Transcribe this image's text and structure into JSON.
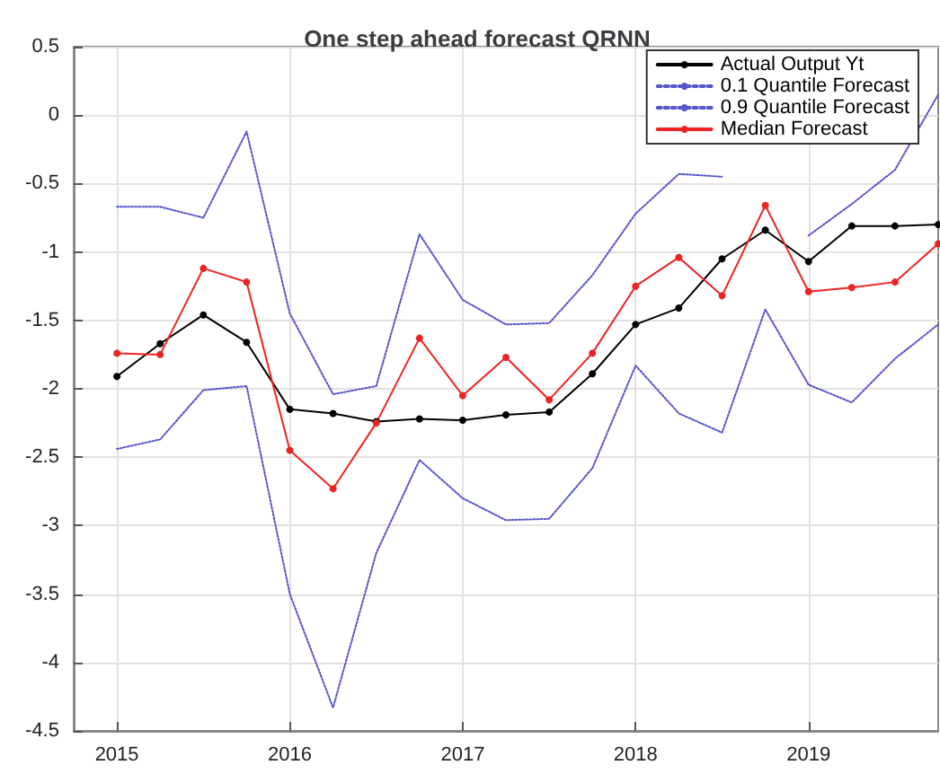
{
  "chart_data": {
    "type": "line",
    "title": "One step ahead forecast QRNN",
    "x": [
      2015,
      2015.25,
      2015.5,
      2015.75,
      2016,
      2016.25,
      2016.5,
      2016.75,
      2017,
      2017.25,
      2017.5,
      2017.75,
      2018,
      2018.25,
      2018.5,
      2018.75,
      2019,
      2019.25,
      2019.5,
      2019.75
    ],
    "series": [
      {
        "name": "Actual Output Yt",
        "color": "#000000",
        "marker": "circle",
        "line_style": "solid",
        "values": [
          -1.91,
          -1.67,
          -1.46,
          -1.66,
          -2.15,
          -2.18,
          -2.24,
          -2.22,
          -2.23,
          -2.19,
          -2.17,
          -1.89,
          -1.53,
          -1.41,
          -1.05,
          -0.84,
          -1.07,
          -0.81,
          -0.81,
          -0.8
        ]
      },
      {
        "name": "0.1 Quantile Forecast",
        "color": "#5555cc",
        "marker": "none",
        "line_style": "dotted",
        "values": [
          -2.44,
          -2.37,
          -2.01,
          -1.98,
          -3.5,
          -4.33,
          -3.2,
          -2.52,
          -2.8,
          -2.96,
          -2.95,
          -2.58,
          -1.83,
          -2.18,
          -2.32,
          -1.42,
          -1.97,
          -2.1,
          -1.78,
          -1.53
        ]
      },
      {
        "name": "0.9 Quantile Forecast",
        "color": "#5555cc",
        "marker": "none",
        "line_style": "dotted",
        "values": [
          -0.67,
          -0.67,
          -0.75,
          -0.12,
          -1.45,
          -2.04,
          -1.98,
          -0.87,
          -1.35,
          -1.53,
          -1.52,
          -1.17,
          -0.72,
          -0.43,
          -0.45,
          null,
          -0.88,
          -0.65,
          -0.4,
          0.15
        ]
      },
      {
        "name": "Median Forecast",
        "color": "#ee2222",
        "marker": "circle",
        "line_style": "solid",
        "values": [
          -1.74,
          -1.75,
          -1.12,
          -1.22,
          -2.45,
          -2.73,
          -2.25,
          -1.63,
          -2.05,
          -1.77,
          -2.08,
          -1.74,
          -1.25,
          -1.04,
          -1.32,
          -0.66,
          -1.29,
          -1.26,
          -1.22,
          -0.94
        ]
      }
    ],
    "xlim": [
      2014.75,
      2019.75
    ],
    "xticks": [
      2015,
      2016,
      2017,
      2018,
      2019
    ],
    "ylim": [
      -4.5,
      0.5
    ],
    "yticks": [
      -4.5,
      -4,
      -3.5,
      -3,
      -2.5,
      -2,
      -1.5,
      -1,
      -0.5,
      0,
      0.5
    ],
    "grid": true,
    "legend": "top right"
  }
}
